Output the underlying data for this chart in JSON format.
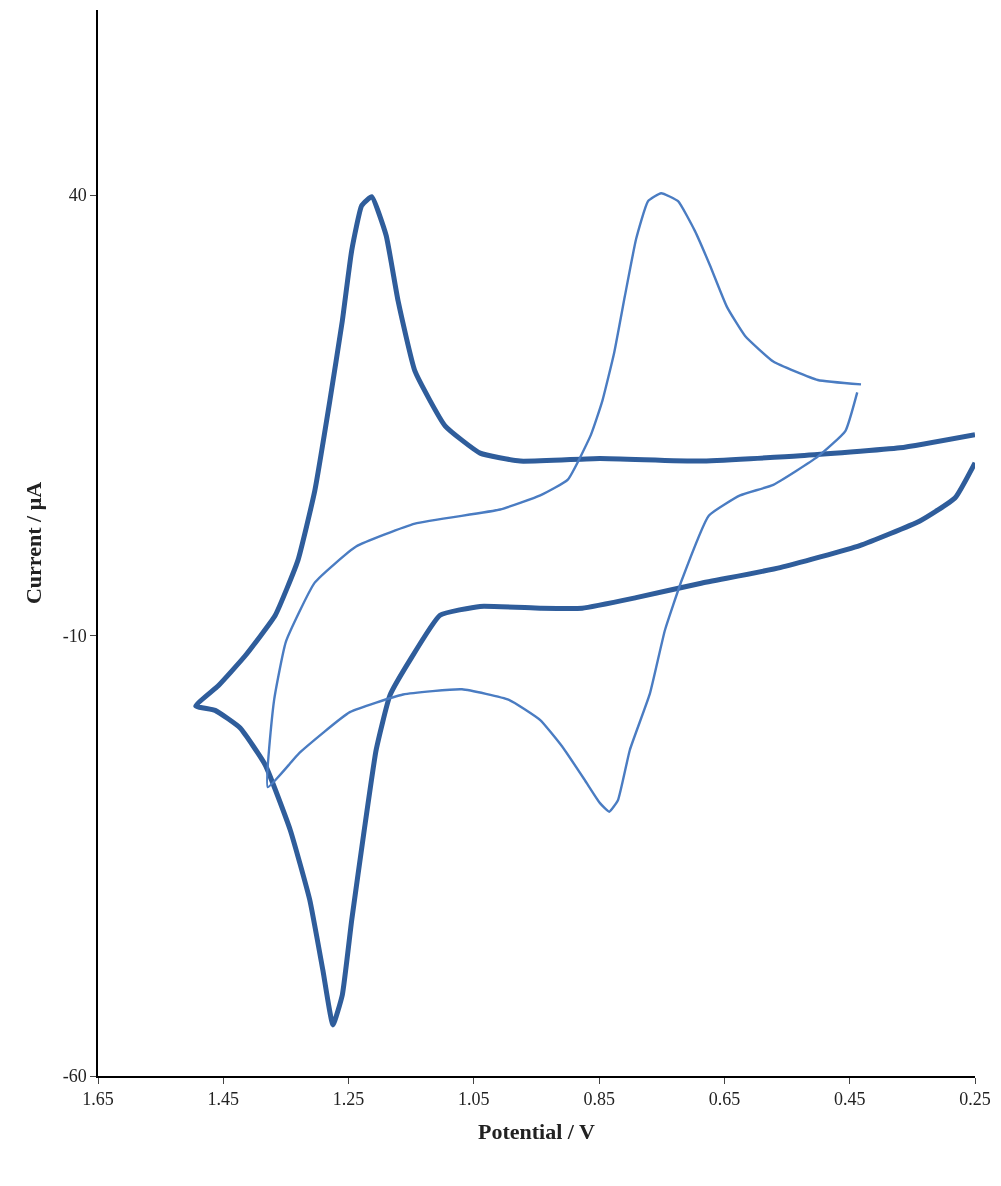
{
  "chart_data": {
    "type": "line",
    "xlabel": "Potential / V",
    "ylabel": "Current / μA",
    "xlim": [
      1.65,
      0.25
    ],
    "xticks": [
      {
        "value": 1.65,
        "label": "1.65"
      },
      {
        "value": 1.45,
        "label": "1.45"
      },
      {
        "value": 1.25,
        "label": "1.25"
      },
      {
        "value": 1.05,
        "label": "1.05"
      },
      {
        "value": 0.85,
        "label": "0.85"
      },
      {
        "value": 0.65,
        "label": "0.65"
      },
      {
        "value": 0.45,
        "label": "0.45"
      },
      {
        "value": 0.25,
        "label": "0.25"
      }
    ],
    "ylim": [
      -60,
      61
    ],
    "yticks": [
      -60,
      -10,
      40
    ],
    "marker": "none",
    "line_style": "solid",
    "series": [
      {
        "color": "#2f5d9b",
        "x": [
          0.25,
          0.37,
          0.529,
          0.689,
          0.849,
          0.976,
          1.04,
          1.096,
          1.144,
          1.171,
          1.19,
          1.213,
          1.229,
          1.245,
          1.26,
          1.28,
          1.304,
          1.331,
          1.367,
          1.415,
          1.458,
          1.494,
          1.463,
          1.423,
          1.383,
          1.343,
          1.312,
          1.291,
          1.275,
          1.26,
          1.245,
          1.225,
          1.206,
          1.184,
          1.152,
          1.104,
          1.04,
          0.944,
          0.877,
          0.791,
          0.689,
          0.561,
          0.434,
          0.338,
          0.282,
          0.25
        ],
        "values": [
          12.8,
          11.3,
          10.4,
          9.8,
          10.1,
          9.8,
          10.7,
          13.8,
          20.0,
          28.0,
          35.4,
          39.8,
          38.8,
          33.7,
          25.7,
          16.6,
          6.4,
          -1.5,
          -7.7,
          -12.3,
          -15.7,
          -18.0,
          -18.5,
          -20.5,
          -24.7,
          -32.1,
          -40.0,
          -48.0,
          -54.2,
          -50.8,
          -42.3,
          -32.1,
          -23.0,
          -16.8,
          -12.8,
          -7.7,
          -6.7,
          -6.9,
          -6.9,
          -5.7,
          -4.1,
          -2.3,
          0.2,
          3.0,
          5.6,
          9.6
        ]
      },
      {
        "color": "#4a7cc2",
        "x": [
          0.432,
          0.501,
          0.572,
          0.617,
          0.646,
          0.673,
          0.697,
          0.724,
          0.751,
          0.772,
          0.791,
          0.809,
          0.826,
          0.845,
          0.863,
          0.9,
          0.944,
          1.008,
          1.144,
          1.238,
          1.304,
          1.35,
          1.369,
          1.379,
          1.328,
          1.248,
          1.163,
          1.069,
          0.994,
          0.944,
          0.909,
          0.873,
          0.849,
          0.834,
          0.82,
          0.801,
          0.769,
          0.745,
          0.718,
          0.675,
          0.625,
          0.572,
          0.501,
          0.457,
          0.438
        ],
        "values": [
          18.5,
          19.0,
          21.1,
          24.0,
          27.3,
          32.0,
          35.9,
          39.3,
          40.2,
          39.3,
          35.0,
          28.5,
          22.1,
          16.6,
          12.8,
          7.7,
          5.9,
          4.3,
          2.7,
          0.1,
          -4.0,
          -10.7,
          -17.4,
          -27.2,
          -23.3,
          -18.7,
          -16.7,
          -16.1,
          -17.3,
          -19.6,
          -22.6,
          -26.4,
          -29.0,
          -30.0,
          -28.7,
          -23.0,
          -16.6,
          -9.4,
          -3.7,
          3.6,
          5.9,
          7.1,
          10.3,
          13.2,
          17.6
        ]
      }
    ]
  }
}
